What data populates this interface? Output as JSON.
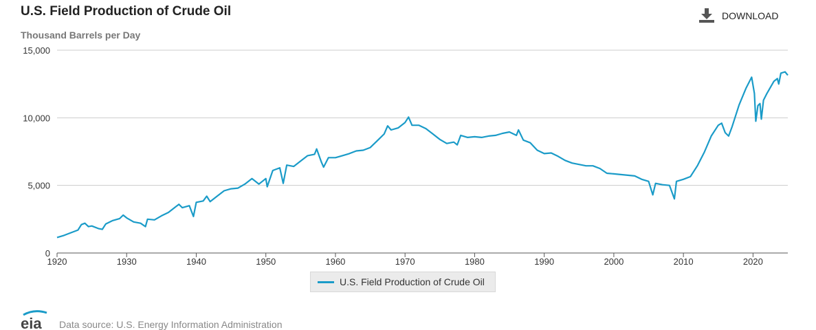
{
  "header": {
    "title": "U.S. Field Production of Crude Oil",
    "subtitle": "Thousand Barrels per Day",
    "download_label": "DOWNLOAD"
  },
  "footer": {
    "logo_text": "eia",
    "source": "Data source: U.S. Energy Information Administration"
  },
  "colors": {
    "series": "#1a9bc8",
    "grid": "#cccccc",
    "axis": "#555555"
  },
  "chart_data": {
    "type": "line",
    "title": "U.S. Field Production of Crude Oil",
    "ylabel": "Thousand Barrels per Day",
    "xlabel": "",
    "xlim": [
      1920,
      2025
    ],
    "ylim": [
      0,
      15000
    ],
    "x_ticks": [
      "1920",
      "1930",
      "1940",
      "1950",
      "1960",
      "1970",
      "1980",
      "1990",
      "2000",
      "2010",
      "2020"
    ],
    "y_ticks": [
      "0",
      "5,000",
      "10,000",
      "15,000"
    ],
    "y_tick_values": [
      0,
      5000,
      10000,
      15000
    ],
    "x_tick_values": [
      1920,
      1930,
      1940,
      1950,
      1960,
      1970,
      1980,
      1990,
      2000,
      2010,
      2020
    ],
    "grid": true,
    "legend_position": "bottom-center",
    "series": [
      {
        "name": "U.S. Field Production of Crude Oil",
        "color": "#1a9bc8",
        "points": [
          [
            1920.0,
            1150
          ],
          [
            1921.0,
            1300
          ],
          [
            1922.0,
            1500
          ],
          [
            1923.0,
            1700
          ],
          [
            1923.5,
            2100
          ],
          [
            1924.0,
            2200
          ],
          [
            1924.5,
            1950
          ],
          [
            1925.0,
            2000
          ],
          [
            1926.0,
            1800
          ],
          [
            1926.5,
            1750
          ],
          [
            1927.0,
            2150
          ],
          [
            1928.0,
            2400
          ],
          [
            1929.0,
            2550
          ],
          [
            1929.5,
            2800
          ],
          [
            1930.0,
            2600
          ],
          [
            1931.0,
            2300
          ],
          [
            1932.0,
            2200
          ],
          [
            1932.7,
            1950
          ],
          [
            1933.0,
            2500
          ],
          [
            1934.0,
            2450
          ],
          [
            1935.0,
            2750
          ],
          [
            1936.0,
            3000
          ],
          [
            1937.0,
            3400
          ],
          [
            1937.5,
            3600
          ],
          [
            1938.0,
            3350
          ],
          [
            1939.0,
            3500
          ],
          [
            1939.6,
            2700
          ],
          [
            1940.0,
            3750
          ],
          [
            1941.0,
            3850
          ],
          [
            1941.5,
            4200
          ],
          [
            1942.0,
            3800
          ],
          [
            1943.0,
            4200
          ],
          [
            1944.0,
            4600
          ],
          [
            1945.0,
            4750
          ],
          [
            1946.0,
            4800
          ],
          [
            1947.0,
            5100
          ],
          [
            1948.0,
            5500
          ],
          [
            1949.0,
            5100
          ],
          [
            1950.0,
            5500
          ],
          [
            1950.2,
            4900
          ],
          [
            1951.0,
            6100
          ],
          [
            1952.0,
            6300
          ],
          [
            1952.5,
            5150
          ],
          [
            1953.0,
            6500
          ],
          [
            1954.0,
            6400
          ],
          [
            1955.0,
            6800
          ],
          [
            1956.0,
            7200
          ],
          [
            1957.0,
            7300
          ],
          [
            1957.3,
            7700
          ],
          [
            1958.0,
            6700
          ],
          [
            1958.3,
            6350
          ],
          [
            1959.0,
            7050
          ],
          [
            1960.0,
            7050
          ],
          [
            1961.0,
            7200
          ],
          [
            1962.0,
            7350
          ],
          [
            1963.0,
            7550
          ],
          [
            1964.0,
            7600
          ],
          [
            1965.0,
            7800
          ],
          [
            1966.0,
            8300
          ],
          [
            1967.0,
            8800
          ],
          [
            1967.5,
            9400
          ],
          [
            1968.0,
            9100
          ],
          [
            1969.0,
            9250
          ],
          [
            1970.0,
            9650
          ],
          [
            1970.5,
            10050
          ],
          [
            1971.0,
            9450
          ],
          [
            1972.0,
            9450
          ],
          [
            1973.0,
            9200
          ],
          [
            1974.0,
            8800
          ],
          [
            1975.0,
            8400
          ],
          [
            1976.0,
            8100
          ],
          [
            1977.0,
            8200
          ],
          [
            1977.5,
            8000
          ],
          [
            1978.0,
            8700
          ],
          [
            1979.0,
            8550
          ],
          [
            1980.0,
            8600
          ],
          [
            1981.0,
            8550
          ],
          [
            1982.0,
            8650
          ],
          [
            1983.0,
            8700
          ],
          [
            1984.0,
            8850
          ],
          [
            1985.0,
            8950
          ],
          [
            1986.0,
            8700
          ],
          [
            1986.3,
            9100
          ],
          [
            1987.0,
            8350
          ],
          [
            1988.0,
            8150
          ],
          [
            1989.0,
            7600
          ],
          [
            1990.0,
            7350
          ],
          [
            1991.0,
            7400
          ],
          [
            1992.0,
            7150
          ],
          [
            1993.0,
            6850
          ],
          [
            1994.0,
            6650
          ],
          [
            1995.0,
            6550
          ],
          [
            1996.0,
            6450
          ],
          [
            1997.0,
            6450
          ],
          [
            1998.0,
            6250
          ],
          [
            1999.0,
            5900
          ],
          [
            2000.0,
            5850
          ],
          [
            2001.0,
            5800
          ],
          [
            2002.0,
            5750
          ],
          [
            2003.0,
            5700
          ],
          [
            2004.0,
            5450
          ],
          [
            2005.0,
            5300
          ],
          [
            2005.6,
            4300
          ],
          [
            2006.0,
            5150
          ],
          [
            2007.0,
            5050
          ],
          [
            2008.0,
            5000
          ],
          [
            2008.7,
            4000
          ],
          [
            2009.0,
            5300
          ],
          [
            2010.0,
            5450
          ],
          [
            2011.0,
            5650
          ],
          [
            2012.0,
            6450
          ],
          [
            2013.0,
            7450
          ],
          [
            2014.0,
            8650
          ],
          [
            2015.0,
            9450
          ],
          [
            2015.5,
            9600
          ],
          [
            2016.0,
            8900
          ],
          [
            2016.5,
            8650
          ],
          [
            2017.0,
            9350
          ],
          [
            2018.0,
            10950
          ],
          [
            2019.0,
            12200
          ],
          [
            2019.8,
            13000
          ],
          [
            2020.2,
            11800
          ],
          [
            2020.4,
            9750
          ],
          [
            2020.7,
            10900
          ],
          [
            2021.0,
            11050
          ],
          [
            2021.2,
            9900
          ],
          [
            2021.5,
            11300
          ],
          [
            2022.0,
            11800
          ],
          [
            2023.0,
            12700
          ],
          [
            2023.5,
            12900
          ],
          [
            2023.7,
            12500
          ],
          [
            2024.0,
            13300
          ],
          [
            2024.6,
            13400
          ],
          [
            2025.0,
            13150
          ]
        ]
      }
    ]
  }
}
